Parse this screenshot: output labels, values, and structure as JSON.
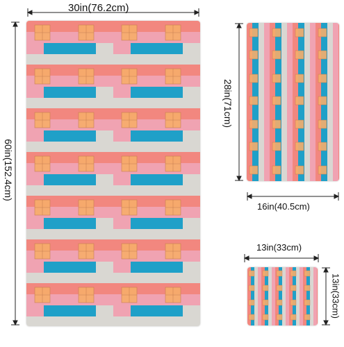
{
  "product": {
    "colors": {
      "salmon": "#f2877f",
      "pink": "#f0a3b2",
      "gray": "#d9d7d2",
      "blue": "#1fa0c8",
      "orange_square": "#f6ad6a",
      "line": "#222222"
    },
    "towels": [
      {
        "name": "bath-towel",
        "width_label": "30in(76.2cm)",
        "height_label": "60in(152.4cm)"
      },
      {
        "name": "hand-towel",
        "width_label": "16in(40.5cm)",
        "height_label": "28in(71cm)"
      },
      {
        "name": "washcloth",
        "width_label": "13in(33cm)",
        "height_label": "13in(33cm)"
      }
    ]
  }
}
